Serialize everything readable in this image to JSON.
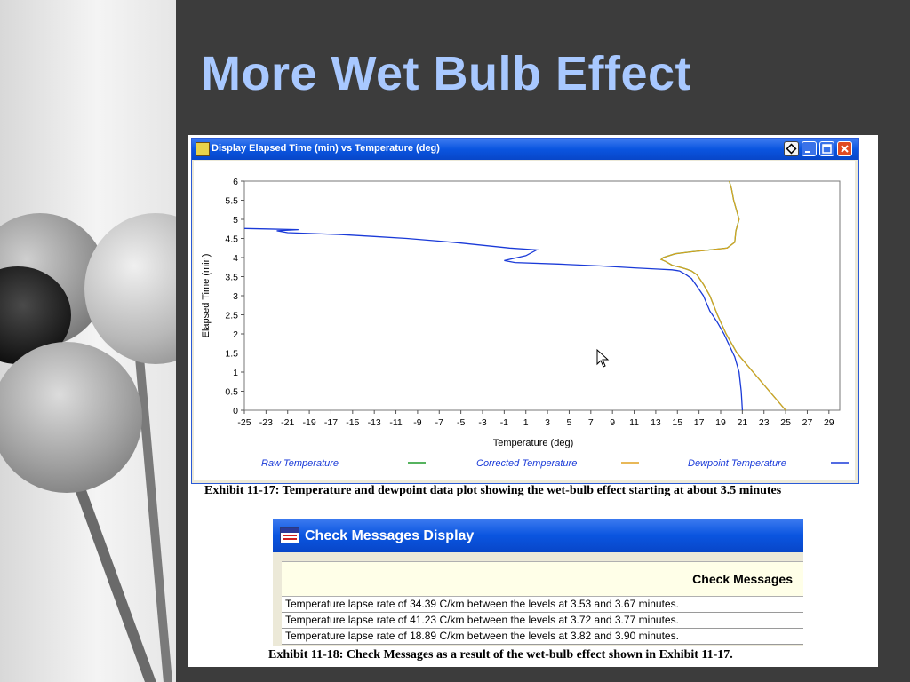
{
  "slide": {
    "title": "More Wet Bulb Effect",
    "colors": {
      "background": "#3c3c3c",
      "title": "#a8c8ff",
      "titlebar": "#0a55e0"
    }
  },
  "plot_window": {
    "title": "Display Elapsed Time (min) vs Temperature (deg)",
    "icons": [
      "plot-app-icon",
      "pin-icon",
      "minimize-icon",
      "maximize-icon",
      "close-icon"
    ]
  },
  "chart_data": {
    "type": "line",
    "title": "",
    "xlabel": "Temperature (deg)",
    "ylabel": "Elapsed Time (min)",
    "xlim": [
      -25,
      30
    ],
    "ylim": [
      0,
      6
    ],
    "x_ticks": [
      "-25",
      "-23",
      "-21",
      "-19",
      "-17",
      "-15",
      "-13",
      "-11",
      "-9",
      "-7",
      "-5",
      "-3",
      "-1",
      "1",
      "3",
      "5",
      "7",
      "9",
      "11",
      "13",
      "15",
      "17",
      "19",
      "21",
      "23",
      "25",
      "27",
      "29"
    ],
    "y_ticks": [
      "0",
      "0.5",
      "1",
      "1.5",
      "2",
      "2.5",
      "3",
      "3.5",
      "4",
      "4.5",
      "5",
      "5.5",
      "6"
    ],
    "grid": false,
    "legend_position": "bottom",
    "legend": [
      {
        "name": "Raw Temperature",
        "color": "#1f9a2a"
      },
      {
        "name": "Corrected Temperature",
        "color": "#e0a020"
      },
      {
        "name": "Dewpoint Temperature",
        "color": "#1a3ad8"
      }
    ],
    "series": [
      {
        "name": "Raw Temperature",
        "color": "#1f9a2a",
        "x": [
          25,
          23.5,
          22.0,
          20.5,
          19.5,
          18.7,
          18.0,
          17.4,
          16.8,
          16.3,
          15.8,
          15.2,
          14.5,
          13.9,
          13.5,
          13.7,
          14.8,
          16.3,
          18.0,
          19.6,
          20.3,
          20.4,
          20.7,
          20.5,
          20.2,
          20.0,
          19.8
        ],
        "y": [
          0,
          0.5,
          1.0,
          1.5,
          2.0,
          2.5,
          3.0,
          3.3,
          3.55,
          3.65,
          3.7,
          3.75,
          3.8,
          3.9,
          3.95,
          4.0,
          4.1,
          4.15,
          4.2,
          4.25,
          4.4,
          4.7,
          5.0,
          5.2,
          5.5,
          5.8,
          6.0
        ]
      },
      {
        "name": "Corrected Temperature",
        "color": "#e0a020",
        "x": [
          25,
          23.5,
          22.0,
          20.5,
          19.5,
          18.7,
          18.0,
          17.4,
          16.8,
          16.3,
          15.8,
          15.2,
          14.5,
          13.9,
          13.5,
          13.7,
          14.8,
          16.3,
          18.0,
          19.6,
          20.3,
          20.4,
          20.7,
          20.5,
          20.2,
          20.0,
          19.8
        ],
        "y": [
          0,
          0.5,
          1.0,
          1.5,
          2.0,
          2.5,
          3.0,
          3.3,
          3.55,
          3.65,
          3.7,
          3.75,
          3.8,
          3.9,
          3.95,
          4.0,
          4.1,
          4.15,
          4.2,
          4.25,
          4.4,
          4.7,
          5.0,
          5.2,
          5.5,
          5.8,
          6.0
        ]
      },
      {
        "name": "Dewpoint Temperature",
        "color": "#1a3ad8",
        "x": [
          21.0,
          20.9,
          20.7,
          20.3,
          19.8,
          19.3,
          18.7,
          18.0,
          17.4,
          16.8,
          16.3,
          15.8,
          15.2,
          14.5,
          13.0,
          11.0,
          8.0,
          4.0,
          0.0,
          -1.0,
          1.0,
          2.0,
          -0.5,
          -3.0,
          -5.0,
          -7.0,
          -10.0,
          -13.0,
          -16.0,
          -19.0,
          -21.0,
          -22.0,
          -20.0,
          -23.0,
          -25.0
        ],
        "y": [
          0,
          0.5,
          1.0,
          1.4,
          1.7,
          2.0,
          2.3,
          2.6,
          3.0,
          3.25,
          3.45,
          3.55,
          3.65,
          3.68,
          3.7,
          3.73,
          3.78,
          3.83,
          3.87,
          3.92,
          4.05,
          4.2,
          4.25,
          4.32,
          4.38,
          4.43,
          4.5,
          4.55,
          4.6,
          4.63,
          4.65,
          4.7,
          4.73,
          4.75,
          4.76
        ]
      }
    ]
  },
  "caption1": "Exhibit 11-17:  Temperature and dewpoint data plot showing the wet-bulb effect starting at about 3.5 minutes",
  "messages_window": {
    "title": "Check Messages Display",
    "header": "Check Messages",
    "messages": [
      "Temperature lapse rate of 34.39 C/km between the levels at 3.53 and 3.67 minutes.",
      "Temperature lapse rate of 41.23 C/km between the levels at 3.72 and 3.77 minutes.",
      "Temperature lapse rate of 18.89 C/km between the levels at 3.82 and 3.90 minutes."
    ]
  },
  "caption2": "Exhibit 11-18:  Check Messages as a result of the wet-bulb effect shown in Exhibit 11-17."
}
